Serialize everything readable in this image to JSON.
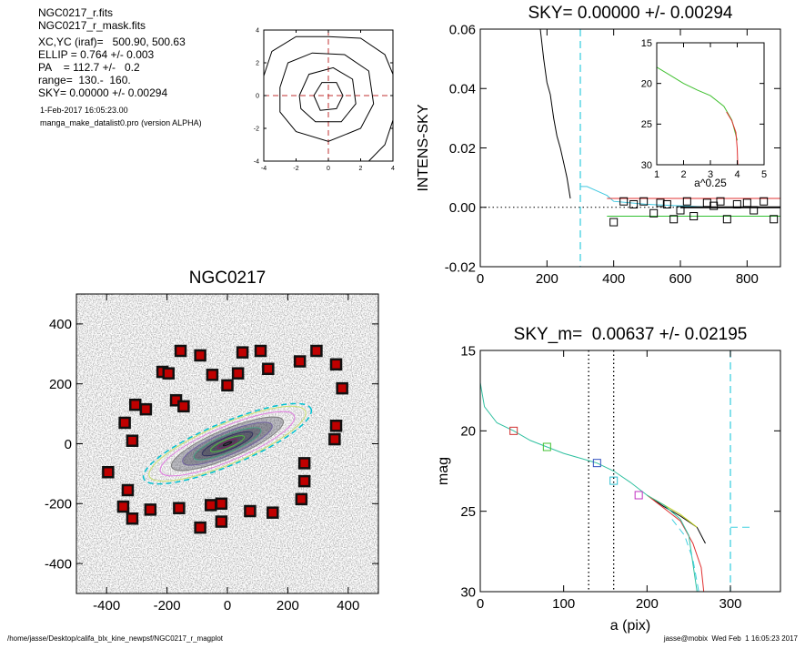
{
  "header_lines": [
    "NGC0217_r.fits",
    "NGC0217_r_mask.fits",
    "XC,YC (iraf)=   500.90, 500.63",
    "ELLIP = 0.764 +/- 0.003",
    "PA    = 112.7 +/-   0.2",
    "range=  130.-  160.",
    "SKY= 0.00000 +/- 0.00294",
    "1-Feb-2017 16:05:23.00",
    "manga_make_datalist0.pro (version ALPHA)"
  ],
  "footer_left": "/home/jasse/Desktop/califa_blx_kine_newpsf/NGC0217_r_magplot",
  "footer_right": "jasse@mobix  Wed Feb  1 16:05:23 2017",
  "chart_data": [
    {
      "type": "line",
      "title": "SKY= 0.00000 +/- 0.00294",
      "ylabel": "INTENS-SKY",
      "xlim": [
        0,
        900
      ],
      "xticks": [
        0,
        200,
        400,
        600,
        800
      ],
      "ylim": [
        -0.02,
        0.06
      ],
      "yticks": [
        -0.02,
        {
          "value": 0,
          "label": "0.00"
        },
        0.02,
        0.04,
        0.06
      ],
      "hlines": [
        {
          "y": 0,
          "color": "#000000",
          "dash": "dot"
        }
      ],
      "vlines": [
        {
          "x": 300,
          "color": "#40d0e0",
          "dash": "dash"
        }
      ],
      "series": [
        {
          "style": "line",
          "color": "#000000",
          "x": [
            180,
            190,
            200,
            210,
            220,
            230,
            240,
            250,
            260,
            270
          ],
          "values": [
            0.06,
            0.05,
            0.042,
            0.038,
            0.03,
            0.024,
            0.02,
            0.015,
            0.01,
            0.003
          ]
        },
        {
          "style": "line",
          "color": "#40c8e0",
          "x": [
            300,
            320,
            340,
            360,
            380,
            400,
            500,
            600,
            700,
            800,
            900
          ],
          "values": [
            0.007,
            0.007,
            0.006,
            0.005,
            0.004,
            0.002,
            0.001,
            0.0005,
            0,
            0,
            0
          ]
        },
        {
          "style": "line",
          "color": "#e03030",
          "x": [
            380,
            900
          ],
          "values": [
            0.003,
            0.003
          ]
        },
        {
          "style": "line",
          "color": "#30c030",
          "x": [
            380,
            900
          ],
          "values": [
            -0.003,
            -0.003
          ]
        },
        {
          "style": "line",
          "color": "#000000",
          "width": 2,
          "x": [
            600,
            900
          ],
          "values": [
            0,
            0
          ]
        },
        {
          "style": "square",
          "color": "#000000",
          "x": [
            400,
            430,
            460,
            490,
            520,
            540,
            560,
            580,
            600,
            620,
            640,
            680,
            700,
            720,
            740,
            770,
            800,
            820,
            850,
            880
          ],
          "values": [
            -0.005,
            0.002,
            0.001,
            0.002,
            -0.002,
            0.0015,
            0.001,
            -0.004,
            -0.001,
            0.002,
            -0.003,
            0.0015,
            0.0005,
            0.002,
            -0.004,
            0.001,
            0.0015,
            -0.001,
            0.002,
            -0.004
          ]
        }
      ]
    },
    {
      "type": "line",
      "xlabel": "a^0.25",
      "xlim": [
        1,
        5
      ],
      "xticks": [
        1,
        2,
        3,
        4,
        5
      ],
      "ylim": [
        30,
        15
      ],
      "yticks": [
        15,
        20,
        25,
        30
      ],
      "series": [
        {
          "style": "line",
          "color": "#40c030",
          "x": [
            1.0,
            1.5,
            2.0,
            2.5,
            3.0,
            3.5,
            3.8,
            4.0
          ],
          "values": [
            18,
            19,
            20,
            20.8,
            21.5,
            22.8,
            24.5,
            27
          ]
        },
        {
          "style": "line",
          "color": "#e03030",
          "x": [
            3.6,
            3.8,
            3.95,
            4.0,
            4.02
          ],
          "values": [
            23.5,
            24.6,
            26,
            28,
            30
          ]
        }
      ]
    },
    {
      "type": "contour",
      "xlim": [
        -4,
        4
      ],
      "xticks": [
        -4,
        -2,
        0,
        2,
        4
      ],
      "ylim": [
        -4,
        4
      ],
      "yticks": [
        -4,
        -2,
        0,
        2,
        4
      ],
      "crosshair": {
        "x": 0,
        "y": 0,
        "color": "#c03030"
      },
      "series": [
        {
          "style": "line",
          "color": "#000000",
          "x": [
            -4,
            -3.5,
            -2,
            0,
            2,
            3.5,
            4
          ],
          "values": [
            1.2,
            2.7,
            3.6,
            3.6,
            3.5,
            2.5,
            1.3
          ]
        },
        {
          "style": "line",
          "color": "#000000",
          "x": [
            4,
            3.5,
            2.5
          ],
          "values": [
            -1.5,
            -3,
            -4
          ]
        },
        {
          "style": "line",
          "color": "#000000",
          "x": [
            -3,
            -2.5,
            -1,
            1,
            2.5,
            2.8,
            2,
            0,
            -2,
            -3,
            -3
          ],
          "values": [
            0.5,
            2,
            2.6,
            2.5,
            1.5,
            -0.5,
            -2,
            -2.8,
            -2.2,
            -1,
            0.5
          ]
        },
        {
          "style": "line",
          "color": "#000000",
          "x": [
            -1.8,
            -1.2,
            0.3,
            1.5,
            1.7,
            0.8,
            -0.8,
            -1.7,
            -1.8
          ],
          "values": [
            0,
            1.3,
            1.7,
            1,
            -0.5,
            -1.6,
            -1.6,
            -0.8,
            0
          ]
        },
        {
          "style": "line",
          "color": "#000000",
          "x": [
            -0.9,
            -0.4,
            0.5,
            0.9,
            0.5,
            -0.5,
            -0.9
          ],
          "values": [
            0,
            0.8,
            0.8,
            0,
            -0.8,
            -0.9,
            0
          ]
        }
      ]
    },
    {
      "type": "image",
      "title": "NGC0217",
      "xlim": [
        -500,
        500
      ],
      "xticks": [
        -400,
        -200,
        0,
        200,
        400
      ],
      "ylim": [
        -500,
        500
      ],
      "yticks": [
        -400,
        -200,
        0,
        200,
        400
      ],
      "ellipse_pa": 112.7,
      "ellipse_ellip": 0.764,
      "ellipse_a": [
        300,
        280,
        240,
        200,
        160,
        120,
        90,
        60,
        35,
        15
      ],
      "ellipse_colors": [
        "#00c0d0",
        "#c8e070",
        "#e080e0",
        "#808080",
        "#7060a0",
        "#40a080",
        "#303060",
        "#50c040",
        "#802060",
        "#101010"
      ],
      "series": [
        {
          "style": "square",
          "color": "#c00000",
          "x": [
            -155,
            -90,
            50,
            110,
            295,
            240,
            360,
            -215,
            -195,
            -50,
            35,
            135,
            0,
            380,
            -305,
            -270,
            -170,
            -145,
            -340,
            -315,
            360,
            355,
            255,
            -395,
            255,
            -330,
            -345,
            -315,
            -255,
            -160,
            -55,
            -20,
            -20,
            -90,
            75,
            150,
            245
          ],
          "values": [
            310,
            295,
            305,
            310,
            310,
            275,
            265,
            240,
            235,
            230,
            235,
            250,
            195,
            185,
            130,
            115,
            145,
            125,
            70,
            10,
            60,
            15,
            -65,
            -95,
            -125,
            -155,
            -210,
            -250,
            -220,
            -215,
            -205,
            -200,
            -260,
            -280,
            -225,
            -230,
            -185
          ]
        }
      ]
    },
    {
      "type": "line",
      "title": "SKY_m=  0.00637 +/- 0.02195",
      "xlabel": "a (pix)",
      "ylabel": "mag",
      "xlim": [
        0,
        360
      ],
      "xticks": [
        0,
        100,
        200,
        300
      ],
      "ylim": [
        30,
        15
      ],
      "yticks": [
        15,
        20,
        25,
        30
      ],
      "vlines": [
        {
          "x": 130,
          "color": "#000000",
          "dash": "dot"
        },
        {
          "x": 160,
          "color": "#000000",
          "dash": "dot"
        },
        {
          "x": 300,
          "color": "#40d0e0",
          "dash": "dash"
        }
      ],
      "series": [
        {
          "style": "line",
          "color": "#000000",
          "x": [
            200,
            220,
            240,
            260,
            270
          ],
          "values": [
            24,
            24.7,
            25.3,
            26,
            27
          ]
        },
        {
          "style": "line",
          "color": "#e03030",
          "x": [
            200,
            220,
            240,
            255,
            265,
            268
          ],
          "values": [
            24,
            24.8,
            25.6,
            27,
            28.5,
            30
          ]
        },
        {
          "style": "line",
          "color": "#c0d020",
          "x": [
            200,
            220,
            240,
            260
          ],
          "values": [
            24,
            24.6,
            25.2,
            26
          ]
        },
        {
          "style": "line",
          "color": "#30c0a0",
          "x": [
            0,
            5,
            20,
            40,
            60,
            80,
            100,
            120,
            140,
            160,
            180,
            200,
            220,
            240,
            250,
            260
          ],
          "values": [
            17,
            18.5,
            19.5,
            20,
            20.6,
            21,
            21.4,
            21.7,
            22,
            22.5,
            23.2,
            24,
            24.6,
            25.5,
            26.5,
            30
          ]
        },
        {
          "style": "line",
          "color": "#40d0e0",
          "dash": "dash",
          "x": [
            230,
            245,
            255,
            262
          ],
          "values": [
            25.5,
            26.5,
            28,
            30
          ]
        },
        {
          "style": "line",
          "color": "#40d0e0",
          "dash": "dash",
          "x": [
            300,
            325
          ],
          "values": [
            26,
            26
          ]
        },
        {
          "style": "square",
          "colors": [
            "#d03030",
            "#40c030",
            "#3050c0",
            "#30c0d0",
            "#c030c0"
          ],
          "x": [
            40,
            80,
            140,
            160,
            190
          ],
          "values": [
            20,
            21,
            22,
            23.1,
            24
          ]
        }
      ]
    }
  ]
}
